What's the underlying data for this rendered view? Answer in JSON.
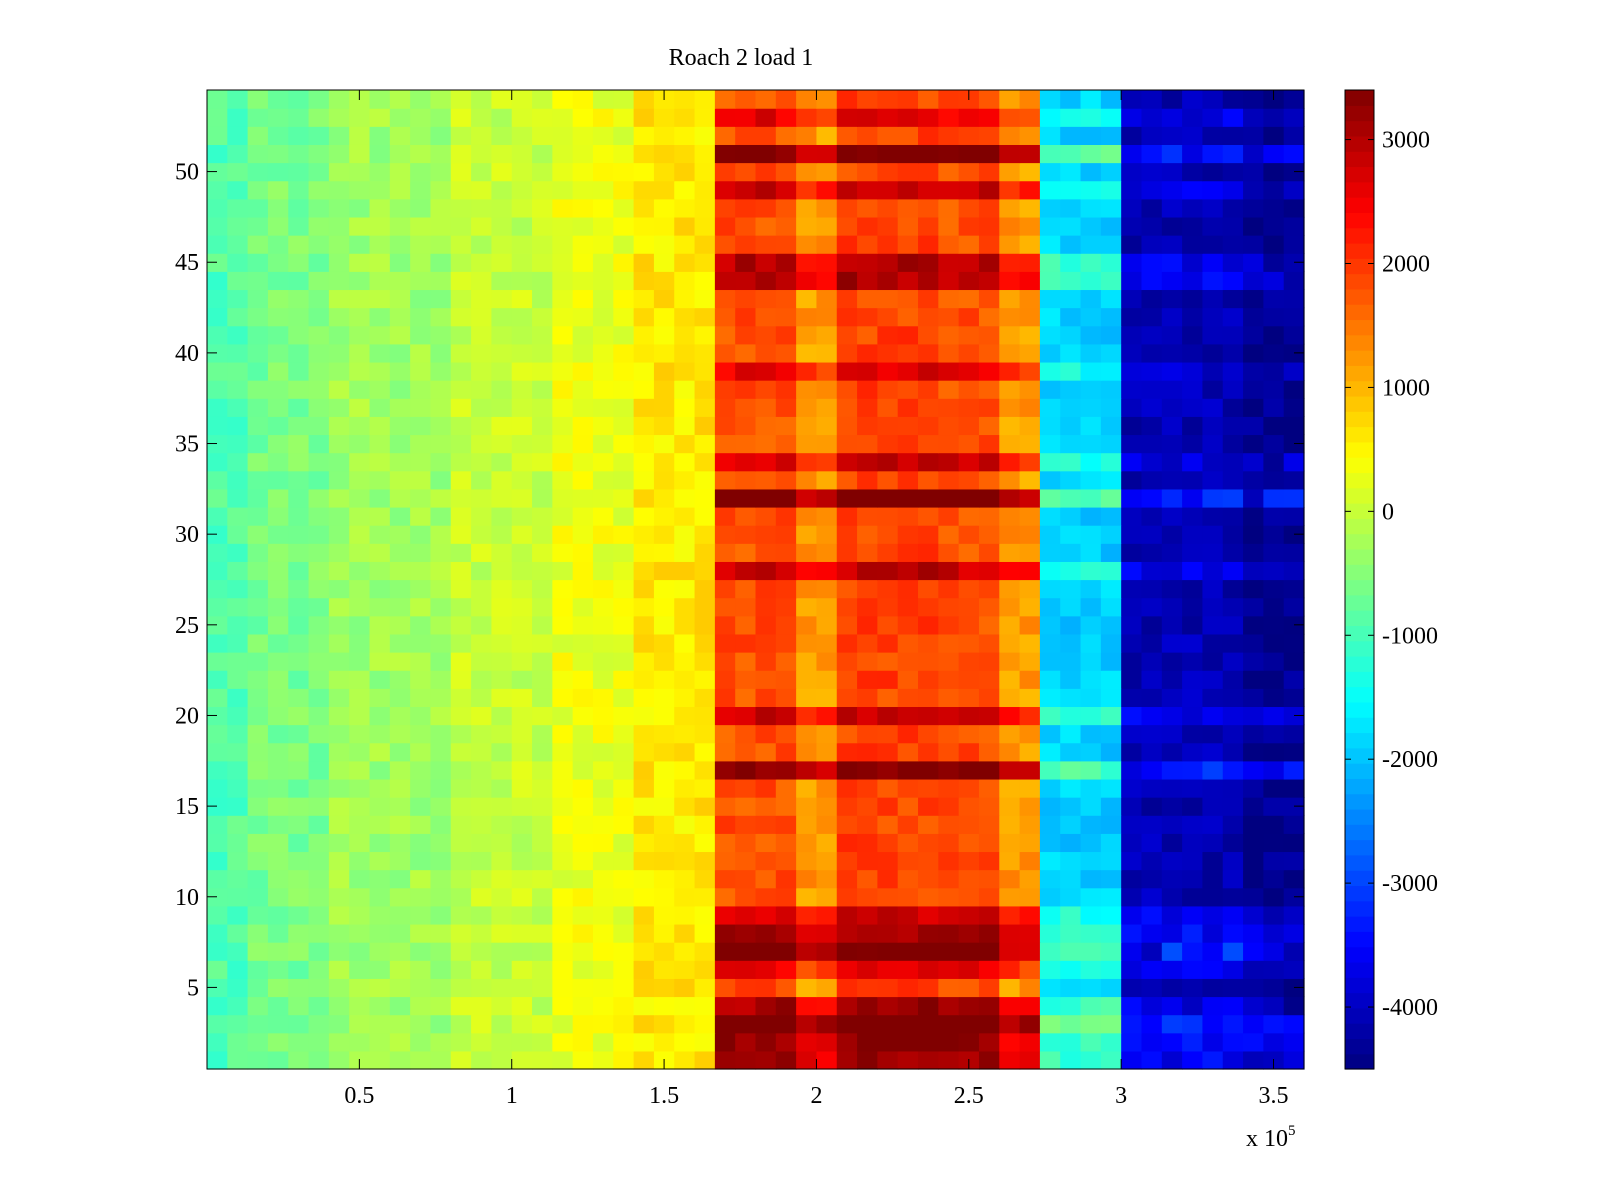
{
  "chart_data": {
    "type": "heatmap",
    "title": "Roach 2 load 1",
    "xlabel": "",
    "ylabel": "",
    "x_multiplier_label": {
      "base": "x 10",
      "exponent": "5"
    },
    "xlim": [
      0,
      360000
    ],
    "ylim": [
      0.5,
      54.5
    ],
    "x_ticks": [
      {
        "value": 50000,
        "label": "0.5"
      },
      {
        "value": 100000,
        "label": "1"
      },
      {
        "value": 150000,
        "label": "1.5"
      },
      {
        "value": 200000,
        "label": "2"
      },
      {
        "value": 250000,
        "label": "2.5"
      },
      {
        "value": 300000,
        "label": "3"
      },
      {
        "value": 350000,
        "label": "3.5"
      }
    ],
    "y_ticks": [
      {
        "value": 5,
        "label": "5"
      },
      {
        "value": 10,
        "label": "10"
      },
      {
        "value": 15,
        "label": "15"
      },
      {
        "value": 20,
        "label": "20"
      },
      {
        "value": 25,
        "label": "25"
      },
      {
        "value": 30,
        "label": "30"
      },
      {
        "value": 35,
        "label": "35"
      },
      {
        "value": 40,
        "label": "40"
      },
      {
        "value": 45,
        "label": "45"
      },
      {
        "value": 50,
        "label": "50"
      }
    ],
    "rows": 54,
    "columns": 54,
    "colormap": "jet",
    "colorbar": {
      "range": [
        -4500,
        3400
      ],
      "ticks": [
        {
          "value": 3000,
          "label": "3000"
        },
        {
          "value": 2000,
          "label": "2000"
        },
        {
          "value": 1000,
          "label": "1000"
        },
        {
          "value": 0,
          "label": "0"
        },
        {
          "value": -1000,
          "label": "-1000"
        },
        {
          "value": -2000,
          "label": "-2000"
        },
        {
          "value": -3000,
          "label": "-3000"
        },
        {
          "value": -4000,
          "label": "-4000"
        }
      ]
    },
    "column_profile": [
      {
        "x_end": 10000,
        "value": -900
      },
      {
        "x_end": 40000,
        "value": -600
      },
      {
        "x_end": 80000,
        "value": -300
      },
      {
        "x_end": 110000,
        "value": 0
      },
      {
        "x_end": 140000,
        "value": 300
      },
      {
        "x_end": 166000,
        "value": 600
      },
      {
        "x_end": 192000,
        "value": 1800
      },
      {
        "x_end": 205000,
        "value": 1200
      },
      {
        "x_end": 240000,
        "value": 1900
      },
      {
        "x_end": 262000,
        "value": 1800
      },
      {
        "x_end": 272000,
        "value": 1200
      },
      {
        "x_end": 302000,
        "value": -1900
      },
      {
        "x_end": 340000,
        "value": -4100
      },
      {
        "x_end": 360000,
        "value": -4400
      }
    ],
    "hot_rows": [
      {
        "row": 1,
        "boost": 1
      },
      {
        "row": 2,
        "boost": 1.1
      },
      {
        "row": 3,
        "boost": 1.4
      },
      {
        "row": 4,
        "boost": 1
      },
      {
        "row": 6,
        "boost": 0.6
      },
      {
        "row": 7,
        "boost": 1.3
      },
      {
        "row": 8,
        "boost": 1
      },
      {
        "row": 9,
        "boost": 0.7
      },
      {
        "row": 17,
        "boost": 1.2
      },
      {
        "row": 20,
        "boost": 0.8
      },
      {
        "row": 28,
        "boost": 0.8
      },
      {
        "row": 32,
        "boost": 1.4
      },
      {
        "row": 34,
        "boost": 0.7
      },
      {
        "row": 39,
        "boost": 0.6
      },
      {
        "row": 44,
        "boost": 0.9
      },
      {
        "row": 45,
        "boost": 0.9
      },
      {
        "row": 49,
        "boost": 0.8
      },
      {
        "row": 51,
        "boost": 1.3
      },
      {
        "row": 53,
        "boost": 0.6
      }
    ]
  }
}
